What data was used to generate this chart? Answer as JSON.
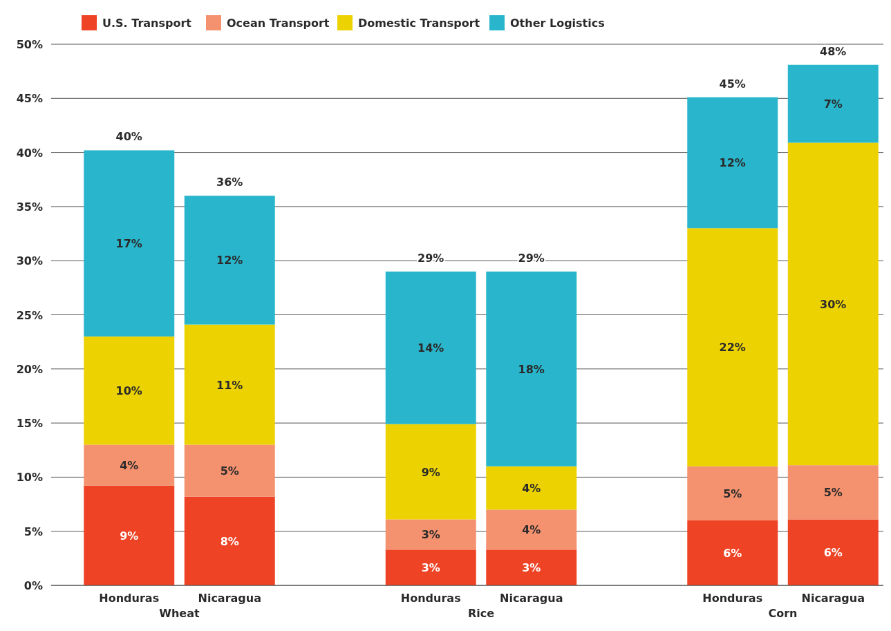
{
  "chart_data": {
    "type": "bar",
    "stacked": true,
    "categories": [
      "Honduras",
      "Nicaragua",
      null,
      "Honduras",
      "Nicaragua",
      null,
      "Honduras",
      "Nicaragua"
    ],
    "series": [
      {
        "name": "U.S. Transport",
        "color": "#ee4324",
        "values": [
          9.2,
          8.2,
          null,
          3.3,
          3.3,
          null,
          6.0,
          6.1
        ],
        "value_labels": [
          "9%",
          "8%",
          null,
          "3%",
          "3%",
          null,
          "6%",
          "6%"
        ]
      },
      {
        "name": "Ocean Transport",
        "color": "#f4916e",
        "values": [
          3.8,
          4.8,
          null,
          2.8,
          3.7,
          null,
          5.0,
          5.0
        ],
        "value_labels": [
          "4%",
          "5%",
          null,
          "3%",
          "4%",
          null,
          "5%",
          "5%"
        ]
      },
      {
        "name": "Domestic Transport",
        "color": "#ecd200",
        "values": [
          10.0,
          11.1,
          null,
          8.8,
          4.0,
          null,
          22.0,
          29.8
        ],
        "value_labels": [
          "10%",
          "11%",
          null,
          "9%",
          "4%",
          null,
          "22%",
          "30%"
        ]
      },
      {
        "name": "Other Logistics",
        "color": "#29b6cc",
        "values": [
          17.2,
          11.9,
          null,
          14.1,
          18.0,
          null,
          12.1,
          7.2
        ],
        "value_labels": [
          "17%",
          "12%",
          null,
          "14%",
          "18%",
          null,
          "12%",
          "7%"
        ]
      }
    ],
    "totals": [
      "40%",
      "36%",
      null,
      "29%",
      "29%",
      null,
      "45%",
      "48%"
    ],
    "annotations": [
      "Wheat",
      "Rice",
      "Corn"
    ],
    "ylim": [
      0,
      50
    ],
    "yticks": [
      {
        "value": 0,
        "label": "0%"
      },
      {
        "value": 5,
        "label": "5%"
      },
      {
        "value": 10,
        "label": "10%"
      },
      {
        "value": 15,
        "label": "15%"
      },
      {
        "value": 20,
        "label": "20%"
      },
      {
        "value": 25,
        "label": "25%"
      },
      {
        "value": 30,
        "label": "30%"
      },
      {
        "value": 35,
        "label": "35%"
      },
      {
        "value": 40,
        "label": "40%"
      },
      {
        "value": 45,
        "label": "45%"
      },
      {
        "value": 50,
        "label": "50%"
      }
    ],
    "grid": "y",
    "legend": "top left"
  }
}
